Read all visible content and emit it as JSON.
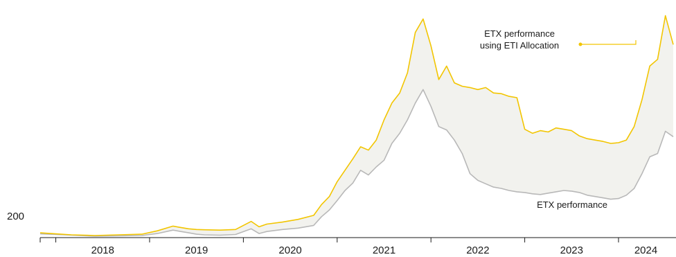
{
  "chart_data": {
    "type": "line",
    "title": "",
    "xlabel": "",
    "ylabel": "",
    "y_tick_labels": [
      "200"
    ],
    "x_tick_labels": [
      "2018",
      "2019",
      "2020",
      "2021",
      "2022",
      "2023",
      "2024"
    ],
    "xlim": [
      "2017-11",
      "2024-08"
    ],
    "ylim": [
      180,
      3600
    ],
    "grid": false,
    "fill_between_series": true,
    "colors": {
      "allocation": "#f2c500",
      "performance": "#b8b8b8",
      "band": "#f2f2ee",
      "axis": "#1a1a1a"
    },
    "annotations": {
      "allocation_label": [
        "ETX performance",
        "using ETI Allocation"
      ],
      "performance_label": "ETX performance"
    },
    "series": [
      {
        "name": "ETX performance using ETI Allocation",
        "x": [
          "2017-11",
          "2018-01",
          "2018-03",
          "2018-06",
          "2018-09",
          "2018-12",
          "2019-02",
          "2019-04",
          "2019-05",
          "2019-06",
          "2019-07",
          "2019-08",
          "2019-10",
          "2019-12",
          "2020-02",
          "2020-03",
          "2020-04",
          "2020-06",
          "2020-08",
          "2020-10",
          "2020-11",
          "2020-12",
          "2021-01",
          "2021-02",
          "2021-03",
          "2021-04",
          "2021-05",
          "2021-06",
          "2021-07",
          "2021-08",
          "2021-09",
          "2021-10",
          "2021-11",
          "2021-12",
          "2022-01",
          "2022-02",
          "2022-03",
          "2022-04",
          "2022-05",
          "2022-06",
          "2022-07",
          "2022-08",
          "2022-09",
          "2022-10",
          "2022-11",
          "2022-12",
          "2023-01",
          "2023-02",
          "2023-03",
          "2023-04",
          "2023-05",
          "2023-06",
          "2023-07",
          "2023-08",
          "2023-09",
          "2023-10",
          "2023-11",
          "2023-12",
          "2024-01",
          "2024-02",
          "2024-03",
          "2024-04",
          "2024-05",
          "2024-06",
          "2024-07",
          "2024-08"
        ],
        "values": [
          220,
          205,
          190,
          180,
          190,
          200,
          250,
          320,
          300,
          280,
          270,
          265,
          260,
          270,
          390,
          310,
          350,
          380,
          420,
          480,
          640,
          760,
          980,
          1150,
          1320,
          1500,
          1450,
          1600,
          1900,
          2150,
          2300,
          2600,
          3200,
          3400,
          3000,
          2500,
          2700,
          2450,
          2400,
          2380,
          2350,
          2380,
          2300,
          2290,
          2250,
          2230,
          1760,
          1700,
          1740,
          1720,
          1780,
          1760,
          1740,
          1660,
          1620,
          1600,
          1580,
          1550,
          1560,
          1600,
          1800,
          2200,
          2700,
          2800,
          3450,
          3020
        ]
      },
      {
        "name": "ETX performance",
        "x": [
          "2017-11",
          "2018-01",
          "2018-03",
          "2018-06",
          "2018-09",
          "2018-12",
          "2019-02",
          "2019-04",
          "2019-05",
          "2019-06",
          "2019-07",
          "2019-08",
          "2019-10",
          "2019-12",
          "2020-02",
          "2020-03",
          "2020-04",
          "2020-06",
          "2020-08",
          "2020-10",
          "2020-11",
          "2020-12",
          "2021-01",
          "2021-02",
          "2021-03",
          "2021-04",
          "2021-05",
          "2021-06",
          "2021-07",
          "2021-08",
          "2021-09",
          "2021-10",
          "2021-11",
          "2021-12",
          "2022-01",
          "2022-02",
          "2022-03",
          "2022-04",
          "2022-05",
          "2022-06",
          "2022-07",
          "2022-08",
          "2022-09",
          "2022-10",
          "2022-11",
          "2022-12",
          "2023-01",
          "2023-02",
          "2023-03",
          "2023-04",
          "2023-05",
          "2023-06",
          "2023-07",
          "2023-08",
          "2023-09",
          "2023-10",
          "2023-11",
          "2023-12",
          "2024-01",
          "2024-02",
          "2024-03",
          "2024-04",
          "2024-05",
          "2024-06",
          "2024-07",
          "2024-08"
        ],
        "values": [
          205,
          195,
          185,
          170,
          175,
          180,
          210,
          260,
          240,
          220,
          200,
          190,
          185,
          195,
          280,
          210,
          240,
          270,
          290,
          330,
          460,
          560,
          700,
          850,
          960,
          1150,
          1080,
          1200,
          1300,
          1550,
          1700,
          1900,
          2150,
          2350,
          2100,
          1800,
          1750,
          1600,
          1400,
          1100,
          1000,
          950,
          900,
          880,
          850,
          830,
          820,
          800,
          790,
          810,
          830,
          850,
          840,
          820,
          780,
          760,
          740,
          720,
          730,
          780,
          880,
          1100,
          1350,
          1400,
          1730,
          1650
        ]
      }
    ]
  }
}
